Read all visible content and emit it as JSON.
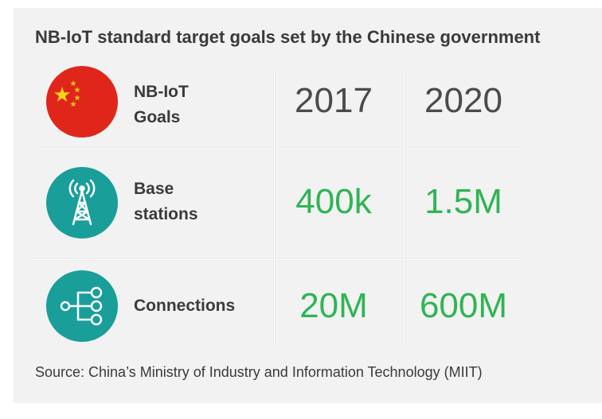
{
  "title": "NB-IoT standard target goals set by the Chinese government",
  "header": {
    "label_line1": "NB-IoT",
    "label_line2": "Goals",
    "year_1": "2017",
    "year_2": "2020"
  },
  "rows": [
    {
      "label_line1": "Base",
      "label_line2": "stations",
      "v2017": "400k",
      "v2020": "1.5M",
      "icon": "cell-tower-icon"
    },
    {
      "label_line1": "Connections",
      "label_line2": "",
      "v2017": "20M",
      "v2020": "600M",
      "icon": "network-nodes-icon"
    }
  ],
  "source": "Source: China’s Ministry of Industry and Information Technology (MIIT)",
  "colors": {
    "flag_red": "#e0261b",
    "flag_star": "#f7d21a",
    "teal": "#1a9e9a",
    "value_green": "#2fb454",
    "background": "#f2f2f2"
  },
  "chart_data": {
    "type": "table",
    "title": "NB-IoT standard target goals set by the Chinese government",
    "columns": [
      "NB-IoT Goals",
      "2017",
      "2020"
    ],
    "rows": [
      [
        "Base stations",
        "400k",
        "1.5M"
      ],
      [
        "Connections",
        "20M",
        "600M"
      ]
    ]
  }
}
